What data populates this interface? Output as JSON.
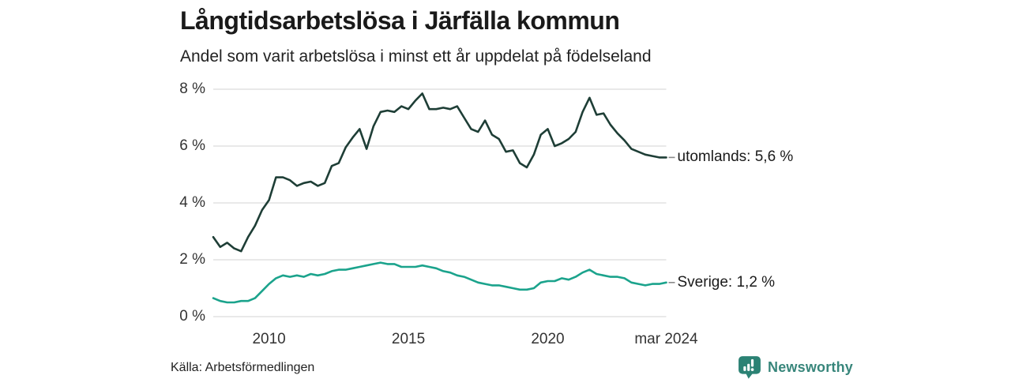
{
  "chart_data": {
    "type": "line",
    "title": "Långtidsarbetslösa i Järfälla kommun",
    "subtitle": "Andel som varit arbetslösa i minst ett år uppdelat på födelseland",
    "xlim": [
      2008,
      2024.25
    ],
    "ylim": [
      0,
      8
    ],
    "grid": "horizontal",
    "legend": "end-of-line labels",
    "yticks": {
      "values": [
        0,
        2,
        4,
        6,
        8
      ],
      "labels": [
        "0 %",
        "2 %",
        "4 %",
        "6 %",
        "8 %"
      ]
    },
    "xticks": {
      "values": [
        2010,
        2015,
        2020,
        2024.25
      ],
      "labels": [
        "2010",
        "2015",
        "2020",
        "mar 2024"
      ]
    },
    "x": [
      2008,
      2008.25,
      2008.5,
      2008.75,
      2009,
      2009.25,
      2009.5,
      2009.75,
      2010,
      2010.25,
      2010.5,
      2010.75,
      2011,
      2011.25,
      2011.5,
      2011.75,
      2012,
      2012.25,
      2012.5,
      2012.75,
      2013,
      2013.25,
      2013.5,
      2013.75,
      2014,
      2014.25,
      2014.5,
      2014.75,
      2015,
      2015.25,
      2015.5,
      2015.75,
      2016,
      2016.25,
      2016.5,
      2016.75,
      2017,
      2017.25,
      2017.5,
      2017.75,
      2018,
      2018.25,
      2018.5,
      2018.75,
      2019,
      2019.25,
      2019.5,
      2019.75,
      2020,
      2020.25,
      2020.5,
      2020.75,
      2021,
      2021.25,
      2021.5,
      2021.75,
      2022,
      2022.25,
      2022.5,
      2022.75,
      2023,
      2023.25,
      2023.5,
      2023.75,
      2024,
      2024.25
    ],
    "series": [
      {
        "name": "utomlands",
        "end_label": "utomlands: 5,6 %",
        "last_value": 5.6,
        "color": "#1e3e36",
        "values": [
          2.8,
          2.45,
          2.6,
          2.4,
          2.3,
          2.8,
          3.2,
          3.75,
          4.1,
          4.9,
          4.9,
          4.8,
          4.6,
          4.7,
          4.75,
          4.6,
          4.7,
          5.3,
          5.4,
          5.95,
          6.3,
          6.6,
          5.9,
          6.7,
          7.2,
          7.25,
          7.2,
          7.4,
          7.3,
          7.6,
          7.85,
          7.3,
          7.3,
          7.35,
          7.3,
          7.4,
          7.0,
          6.6,
          6.5,
          6.9,
          6.4,
          6.25,
          5.8,
          5.85,
          5.4,
          5.25,
          5.7,
          6.4,
          6.6,
          6.0,
          6.1,
          6.25,
          6.5,
          7.2,
          7.7,
          7.1,
          7.15,
          6.75,
          6.45,
          6.2,
          5.9,
          5.8,
          5.7,
          5.65,
          5.6,
          5.6
        ]
      },
      {
        "name": "Sverige",
        "end_label": "Sverige: 1,2 %",
        "last_value": 1.2,
        "color": "#1ba38c",
        "values": [
          0.65,
          0.55,
          0.5,
          0.5,
          0.55,
          0.55,
          0.65,
          0.9,
          1.15,
          1.35,
          1.45,
          1.4,
          1.45,
          1.4,
          1.5,
          1.45,
          1.5,
          1.6,
          1.65,
          1.65,
          1.7,
          1.75,
          1.8,
          1.85,
          1.9,
          1.85,
          1.85,
          1.75,
          1.75,
          1.75,
          1.8,
          1.75,
          1.7,
          1.6,
          1.55,
          1.45,
          1.4,
          1.3,
          1.2,
          1.15,
          1.1,
          1.1,
          1.05,
          1.0,
          0.95,
          0.95,
          1.0,
          1.2,
          1.25,
          1.25,
          1.35,
          1.3,
          1.4,
          1.55,
          1.65,
          1.5,
          1.45,
          1.4,
          1.4,
          1.35,
          1.2,
          1.15,
          1.1,
          1.15,
          1.15,
          1.2
        ]
      }
    ]
  },
  "source": "Källa: Arbetsförmedlingen",
  "brand": "Newsworthy",
  "colors": {
    "grid": "#dcdcdc",
    "axis_text": "#333333",
    "text": "#1a1a1a",
    "label_dash": "#888888",
    "brand_box": "#2b8274",
    "brand_text": "#38867b",
    "background": "#ffffff"
  }
}
